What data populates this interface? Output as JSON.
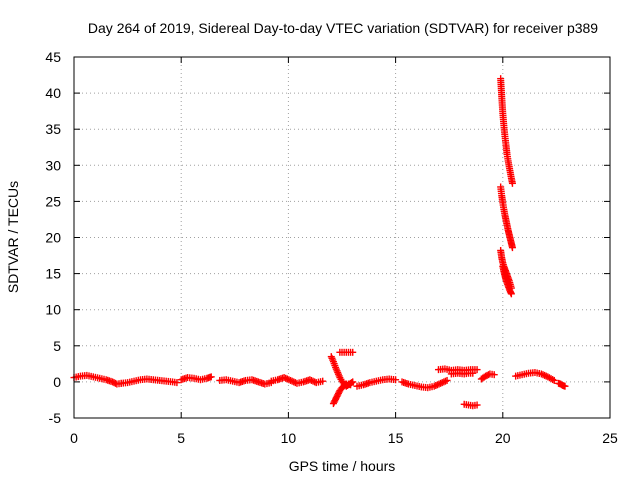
{
  "chart_data": {
    "type": "scatter",
    "title": "Day 264 of 2019, Sidereal Day-to-day VTEC variation (SDTVAR) for receiver p389",
    "xlabel": "GPS time / hours",
    "ylabel": "SDTVAR / TECUs",
    "xlim": [
      0,
      25
    ],
    "ylim": [
      -5,
      45
    ],
    "xticks": [
      "0",
      "5",
      "10",
      "15",
      "20",
      "25"
    ],
    "yticks": [
      "-5",
      "0",
      "5",
      "10",
      "15",
      "20",
      "25",
      "30",
      "35",
      "40",
      "45"
    ],
    "grid": true,
    "marker": "+",
    "color": "#ff0000",
    "series": [
      {
        "name": "p389",
        "segments": [
          {
            "x": [
              0.0,
              0.3,
              0.6,
              0.9,
              1.2,
              1.5,
              1.8,
              2.0,
              2.2
            ],
            "y": [
              0.6,
              0.8,
              0.9,
              0.7,
              0.5,
              0.3,
              0.0,
              -0.3,
              -0.2
            ]
          },
          {
            "x": [
              2.2,
              2.5,
              2.8,
              3.1,
              3.4,
              3.7,
              4.0,
              4.3,
              4.6,
              4.8
            ],
            "y": [
              -0.2,
              -0.1,
              0.1,
              0.3,
              0.4,
              0.3,
              0.2,
              0.1,
              0.0,
              -0.1
            ]
          },
          {
            "x": [
              5.0,
              5.3,
              5.6,
              5.9,
              6.2,
              6.4
            ],
            "y": [
              0.3,
              0.6,
              0.5,
              0.3,
              0.5,
              0.7
            ]
          },
          {
            "x": [
              6.8,
              7.1,
              7.4,
              7.7,
              8.0,
              8.3,
              8.6,
              8.9,
              9.2
            ],
            "y": [
              0.2,
              0.3,
              0.1,
              -0.1,
              0.2,
              0.3,
              0.0,
              -0.3,
              -0.1
            ]
          },
          {
            "x": [
              9.2,
              9.5,
              9.8,
              10.1,
              10.4,
              10.7,
              11.0,
              11.3,
              11.6
            ],
            "y": [
              0.1,
              0.3,
              0.6,
              0.2,
              -0.2,
              0.0,
              0.3,
              -0.1,
              0.1
            ]
          },
          {
            "x": [
              12.0,
              12.1,
              12.2,
              12.3,
              12.4,
              12.5,
              12.6,
              12.7,
              12.8,
              12.9,
              13.0
            ],
            "y": [
              3.5,
              2.8,
              2.0,
              1.3,
              0.6,
              0.1,
              -0.3,
              -0.6,
              -0.4,
              -0.2,
              0.0
            ]
          },
          {
            "x": [
              12.1,
              12.2,
              12.3,
              12.4,
              12.5,
              12.6,
              12.7,
              12.8,
              12.9
            ],
            "y": [
              -3.0,
              -2.4,
              -1.8,
              -1.2,
              -0.8,
              -0.5,
              -0.3,
              -0.3,
              -0.4
            ]
          },
          {
            "x": [
              12.4,
              12.6,
              12.8,
              13.0
            ],
            "y": [
              4.1,
              4.1,
              4.1,
              4.1
            ]
          },
          {
            "x": [
              13.2,
              13.5,
              13.8,
              14.1,
              14.4,
              14.7,
              15.0
            ],
            "y": [
              -0.6,
              -0.4,
              -0.1,
              0.1,
              0.3,
              0.4,
              0.3
            ]
          },
          {
            "x": [
              15.3,
              15.6,
              15.9,
              16.2,
              16.5,
              16.8,
              17.1,
              17.4
            ],
            "y": [
              0.0,
              -0.3,
              -0.5,
              -0.7,
              -0.8,
              -0.6,
              -0.2,
              0.2
            ]
          },
          {
            "x": [
              17.0,
              17.3,
              17.6,
              17.9,
              18.2,
              18.5,
              18.8
            ],
            "y": [
              1.7,
              1.8,
              1.6,
              1.7,
              1.6,
              1.7,
              1.7
            ]
          },
          {
            "x": [
              17.6,
              17.9,
              18.2,
              18.4,
              18.6
            ],
            "y": [
              1.1,
              1.2,
              1.1,
              1.2,
              1.2
            ]
          },
          {
            "x": [
              18.2,
              18.4,
              18.6,
              18.8
            ],
            "y": [
              -3.1,
              -3.2,
              -3.3,
              -3.2
            ]
          },
          {
            "x": [
              19.0,
              19.2,
              19.4,
              19.6
            ],
            "y": [
              0.4,
              0.8,
              1.1,
              1.0
            ]
          },
          {
            "x": [
              19.9,
              19.95,
              20.0,
              20.05,
              20.1,
              20.15,
              20.2,
              20.25,
              20.3,
              20.35,
              20.4,
              20.45
            ],
            "y": [
              42.0,
              39.5,
              37.2,
              35.5,
              34.0,
              32.8,
              31.5,
              30.6,
              29.8,
              29.0,
              28.2,
              27.5
            ]
          },
          {
            "x": [
              19.9,
              19.95,
              20.0,
              20.05,
              20.1,
              20.15,
              20.2,
              20.25,
              20.3,
              20.35,
              20.4,
              20.45
            ],
            "y": [
              27.0,
              25.8,
              24.8,
              23.9,
              23.1,
              22.4,
              21.7,
              21.0,
              20.4,
              19.8,
              19.2,
              18.6
            ]
          },
          {
            "x": [
              19.9,
              19.95,
              20.0,
              20.05,
              20.1,
              20.15,
              20.2,
              20.25,
              20.3,
              20.35,
              20.4
            ],
            "y": [
              18.2,
              17.2,
              16.5,
              16.0,
              15.6,
              15.2,
              14.8,
              14.4,
              14.0,
              13.5,
              13.0
            ]
          },
          {
            "x": [
              20.0,
              20.05,
              20.1,
              20.15,
              20.2,
              20.25,
              20.3,
              20.35,
              20.4
            ],
            "y": [
              16.0,
              15.3,
              14.7,
              14.1,
              13.7,
              13.3,
              12.9,
              12.5,
              12.2
            ]
          },
          {
            "x": [
              20.6,
              20.9,
              21.2,
              21.5,
              21.8,
              22.1,
              22.4
            ],
            "y": [
              0.8,
              1.0,
              1.2,
              1.3,
              1.1,
              0.7,
              0.2
            ]
          },
          {
            "x": [
              22.6,
              22.7,
              22.8,
              22.9
            ],
            "y": [
              -0.2,
              -0.3,
              -0.5,
              -0.6
            ]
          }
        ]
      }
    ]
  }
}
